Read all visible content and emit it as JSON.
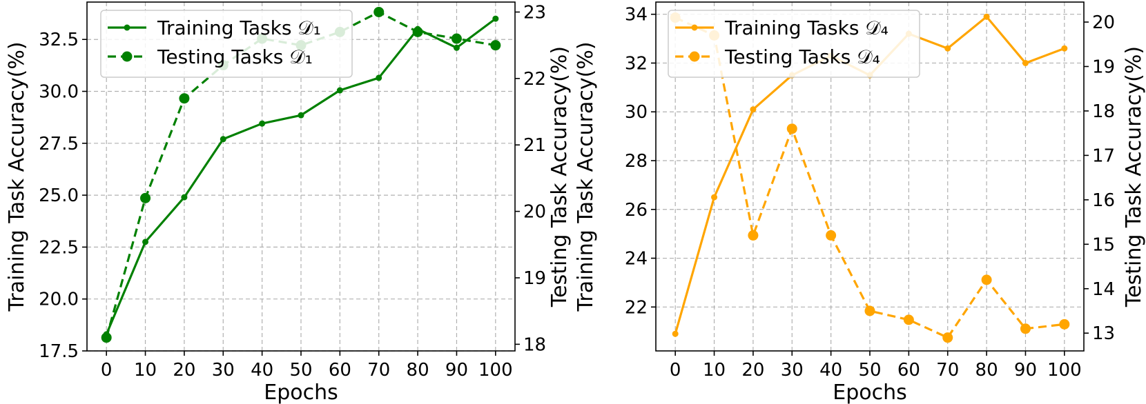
{
  "chart_data": [
    {
      "type": "line",
      "color": "#008000",
      "x": [
        0,
        10,
        20,
        30,
        40,
        50,
        60,
        70,
        80,
        90,
        100
      ],
      "xlabel": "Epochs",
      "ylabel_left": "Training Task Accuracy(%)",
      "ylabel_right": "Testing Task Accuracy(%)",
      "xticks": [
        "0",
        "10",
        "20",
        "30",
        "40",
        "50",
        "60",
        "70",
        "80",
        "90",
        "100"
      ],
      "xlim": [
        -5,
        105
      ],
      "ylim_left": [
        17.5,
        34.3
      ],
      "ylim_right": [
        17.9,
        23.15
      ],
      "yticks_left": [
        "17.5",
        "20.0",
        "22.5",
        "25.0",
        "27.5",
        "30.0",
        "32.5"
      ],
      "yticks_right": [
        "18",
        "19",
        "20",
        "21",
        "22",
        "23"
      ],
      "grid": true,
      "legend_position": "top-left",
      "series": [
        {
          "name": "Training Tasks 𝒟₁",
          "axis": "left",
          "style": "solid",
          "marker": "small",
          "values": [
            18.3,
            22.75,
            24.9,
            27.7,
            28.45,
            28.85,
            30.05,
            30.65,
            33.0,
            32.1,
            33.5
          ]
        },
        {
          "name": "Testing Tasks 𝒟₁",
          "axis": "right",
          "style": "dashed",
          "marker": "large",
          "values": [
            18.1,
            20.2,
            21.7,
            22.2,
            22.6,
            22.5,
            22.7,
            23.0,
            22.7,
            22.6,
            22.5
          ]
        }
      ]
    },
    {
      "type": "line",
      "color": "#FFA500",
      "x": [
        0,
        10,
        20,
        30,
        40,
        50,
        60,
        70,
        80,
        90,
        100
      ],
      "xlabel": "Epochs",
      "ylabel_left": "Training Task Accuracy(%)",
      "ylabel_right": "Testing Task Accuracy(%)",
      "xticks": [
        "0",
        "10",
        "20",
        "30",
        "40",
        "50",
        "60",
        "70",
        "80",
        "90",
        "100"
      ],
      "xlim": [
        -5,
        105
      ],
      "ylim_left": [
        20.2,
        34.5
      ],
      "ylim_right": [
        12.6,
        20.45
      ],
      "yticks_left": [
        "22",
        "24",
        "26",
        "28",
        "30",
        "32",
        "34"
      ],
      "yticks_right": [
        "13",
        "14",
        "15",
        "16",
        "17",
        "18",
        "19",
        "20"
      ],
      "grid": true,
      "legend_position": "top-left",
      "series": [
        {
          "name": "Training Tasks 𝒟₄",
          "axis": "left",
          "style": "solid",
          "marker": "small",
          "values": [
            20.9,
            26.5,
            30.1,
            31.5,
            32.3,
            31.5,
            33.2,
            32.6,
            33.9,
            32.0,
            32.6
          ]
        },
        {
          "name": "Testing Tasks 𝒟₄",
          "axis": "right",
          "style": "dashed",
          "marker": "large",
          "values": [
            20.1,
            19.7,
            15.2,
            17.6,
            15.2,
            13.5,
            13.3,
            12.9,
            14.2,
            13.1,
            13.2
          ]
        }
      ]
    }
  ]
}
